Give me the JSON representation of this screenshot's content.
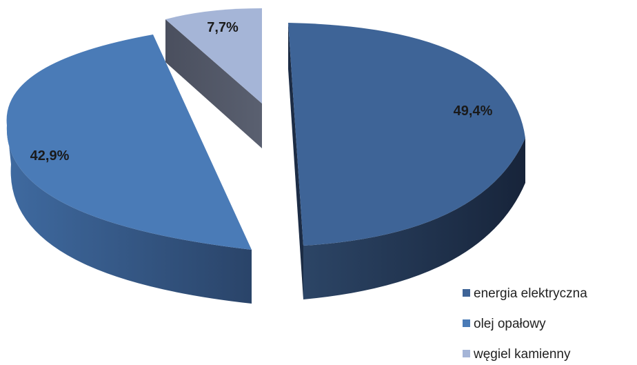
{
  "chart_data": {
    "type": "pie",
    "style": "3d-exploded",
    "title": "",
    "categories": [
      "energia elektryczna",
      "olej opałowy",
      "węgiel kamienny"
    ],
    "values": [
      49.4,
      42.9,
      7.7
    ],
    "labels": [
      "49,4%",
      "42,9%",
      "7,7%"
    ],
    "unit": "%",
    "colors": [
      "#3E6497",
      "#4A7BB7",
      "#A5B5D7"
    ],
    "legend": {
      "position": "bottom-right",
      "entries": [
        "energia elektryczna",
        "olej opałowy",
        "węgiel kamienny"
      ]
    }
  }
}
